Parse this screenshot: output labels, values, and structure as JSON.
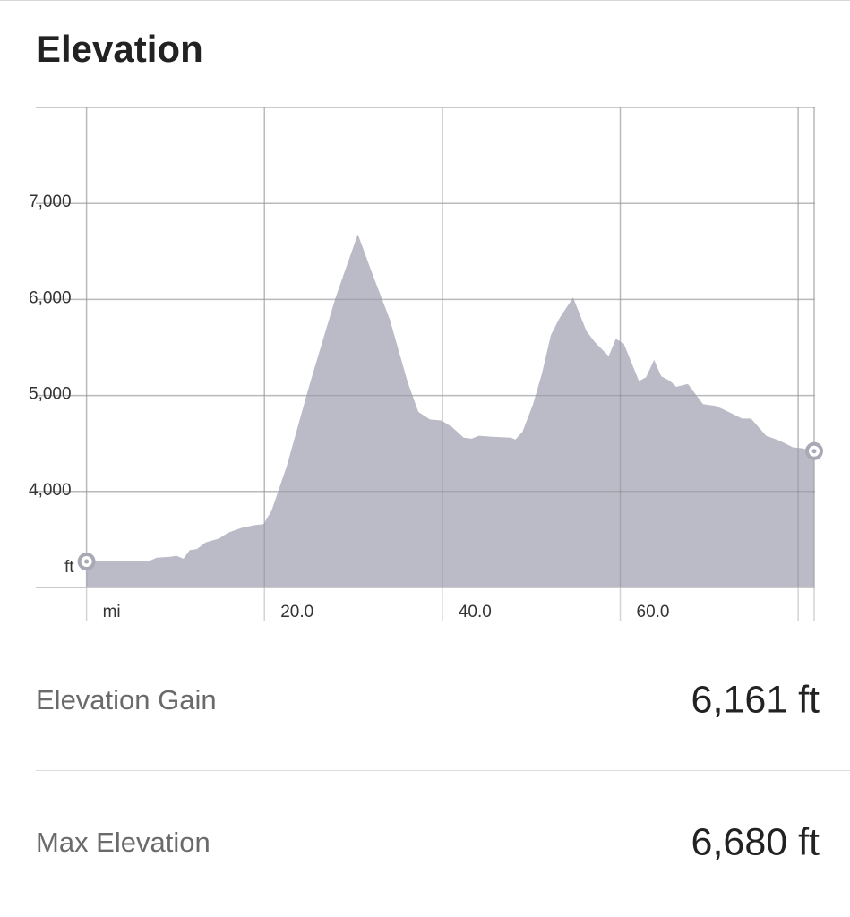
{
  "title": "Elevation",
  "chart_data": {
    "type": "area",
    "color": "#bbbbc7",
    "marker_color": "#ffffff",
    "marker_stroke": "#a9a9b6",
    "x_label": "mi",
    "y_label": "ft",
    "x": [
      0,
      6.9,
      7.9,
      9.4,
      10.1,
      10.9,
      11.6,
      12.4,
      13.4,
      14.9,
      15.9,
      17.4,
      18.9,
      19.9,
      20.8,
      22.5,
      25.0,
      28.0,
      30.5,
      32.0,
      34.1,
      36.1,
      37.3,
      38.6,
      39.9,
      41.1,
      42.4,
      43.3,
      44.1,
      45.6,
      47.7,
      48.2,
      49.0,
      50.2,
      51.2,
      52.2,
      53.2,
      54.7,
      56.2,
      57.2,
      58.7,
      59.5,
      60.4,
      62.1,
      62.9,
      63.8,
      64.6,
      65.6,
      66.3,
      67.6,
      69.3,
      70.8,
      72.8,
      73.7,
      74.7,
      76.4,
      77.9,
      79.4,
      80.4,
      81.8
    ],
    "values": [
      3270,
      3270,
      3310,
      3320,
      3330,
      3300,
      3390,
      3400,
      3470,
      3510,
      3570,
      3620,
      3650,
      3660,
      3800,
      4260,
      5090,
      6020,
      6680,
      6300,
      5790,
      5140,
      4830,
      4750,
      4740,
      4670,
      4560,
      4550,
      4580,
      4570,
      4560,
      4540,
      4620,
      4910,
      5230,
      5630,
      5810,
      6020,
      5670,
      5550,
      5410,
      5590,
      5540,
      5150,
      5190,
      5370,
      5200,
      5150,
      5090,
      5120,
      4910,
      4890,
      4800,
      4760,
      4760,
      4580,
      4530,
      4460,
      4450,
      4420
    ],
    "xlim": [
      -5.7,
      81.9
    ],
    "ylim": [
      3000,
      8000
    ],
    "xticks": [
      {
        "value": 0,
        "label": null
      },
      {
        "value": 20,
        "label": "20.0"
      },
      {
        "value": 40,
        "label": "40.0"
      },
      {
        "value": 60,
        "label": "60.0"
      },
      {
        "value": 80,
        "label": null
      },
      {
        "value": 81.8,
        "label": null
      }
    ],
    "yticks": [
      {
        "value": 3000,
        "label": null
      },
      {
        "value": 4000,
        "label": "4,000"
      },
      {
        "value": 5000,
        "label": "5,000"
      },
      {
        "value": 6000,
        "label": "6,000"
      },
      {
        "value": 7000,
        "label": "7,000"
      },
      {
        "value": 8000,
        "label": null
      }
    ],
    "grid": true
  },
  "stats": [
    {
      "label": "Elevation Gain",
      "value": "6,161 ft"
    },
    {
      "label": "Max Elevation",
      "value": "6,680 ft"
    }
  ]
}
